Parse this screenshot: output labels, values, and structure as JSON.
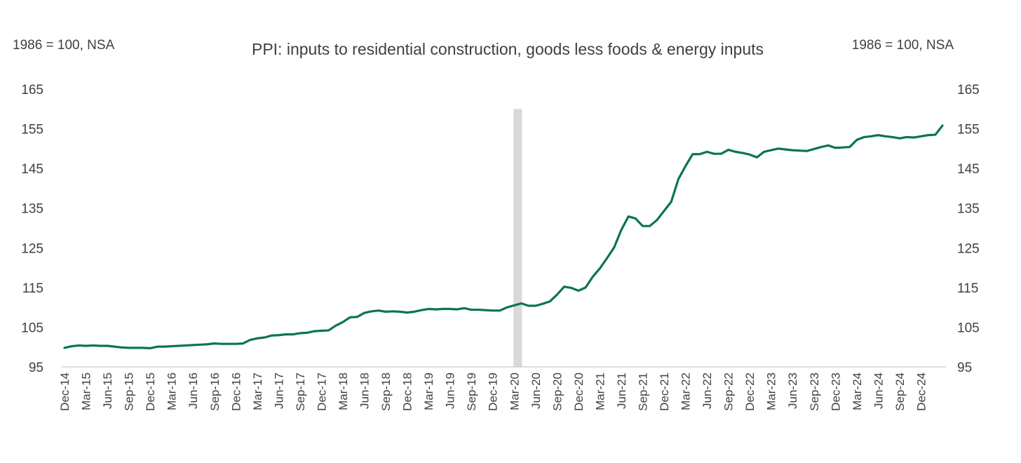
{
  "chart_data": {
    "type": "line",
    "title": "PPI: inputs to residential construction, goods less foods & energy inputs",
    "y_label_left": "1986 = 100, NSA",
    "y_label_right": "1986 = 100, NSA",
    "ylim": [
      95,
      165
    ],
    "yticks": [
      95,
      105,
      115,
      125,
      135,
      145,
      155,
      165
    ],
    "x_tick_labels": [
      "Dec-14",
      "Mar-15",
      "Jun-15",
      "Sep-15",
      "Dec-15",
      "Mar-16",
      "Jun-16",
      "Sep-16",
      "Dec-16",
      "Mar-17",
      "Jun-17",
      "Sep-17",
      "Dec-17",
      "Mar-18",
      "Jun-18",
      "Sep-18",
      "Dec-18",
      "Mar-19",
      "Jun-19",
      "Sep-19",
      "Dec-19",
      "Mar-20",
      "Jun-20",
      "Sep-20",
      "Dec-20",
      "Mar-21",
      "Jun-21",
      "Sep-21",
      "Dec-21",
      "Mar-22",
      "Jun-22",
      "Sep-22",
      "Dec-22",
      "Mar-23",
      "Jun-23",
      "Sep-23",
      "Dec-23",
      "Mar-24",
      "Jun-24",
      "Sep-24",
      "Dec-24"
    ],
    "recession_shading": {
      "start": "Mar-20",
      "end": "Apr-20"
    },
    "grid": false,
    "legend": "none",
    "colors": {
      "line": "#0b7358",
      "shading": "#d9d9d9",
      "text": "#404040",
      "axis": "#bfbfbf"
    },
    "series": [
      {
        "start": "Dec-14",
        "frequency": "monthly",
        "values": [
          99.8,
          100.2,
          100.4,
          100.3,
          100.4,
          100.3,
          100.3,
          100.1,
          99.9,
          99.8,
          99.8,
          99.8,
          99.7,
          100.1,
          100.1,
          100.2,
          100.3,
          100.4,
          100.5,
          100.6,
          100.7,
          100.9,
          100.8,
          100.8,
          100.8,
          100.9,
          101.8,
          102.2,
          102.4,
          102.9,
          103.0,
          103.2,
          103.2,
          103.5,
          103.6,
          104.0,
          104.1,
          104.2,
          105.4,
          106.3,
          107.5,
          107.6,
          108.6,
          109.0,
          109.2,
          108.9,
          109.0,
          108.9,
          108.7,
          108.9,
          109.3,
          109.6,
          109.5,
          109.6,
          109.6,
          109.5,
          109.8,
          109.4,
          109.4,
          109.3,
          109.2,
          109.2,
          110.0,
          110.5,
          111.0,
          110.4,
          110.4,
          110.9,
          111.5,
          113.2,
          115.2,
          114.9,
          114.2,
          115.0,
          117.7,
          119.8,
          122.4,
          125.1,
          129.5,
          132.9,
          132.4,
          130.5,
          130.5,
          132.0,
          134.3,
          136.6,
          142.3,
          145.6,
          148.6,
          148.6,
          149.2,
          148.7,
          148.7,
          149.7,
          149.2,
          148.9,
          148.5,
          147.8,
          149.2,
          149.6,
          150.0,
          149.8,
          149.6,
          149.5,
          149.4,
          149.9,
          150.4,
          150.8,
          150.2,
          150.3,
          150.4,
          152.2,
          152.9,
          153.1,
          153.4,
          153.1,
          152.9,
          152.6,
          152.9,
          152.8,
          153.1,
          153.4,
          153.5,
          155.8
        ]
      }
    ]
  }
}
